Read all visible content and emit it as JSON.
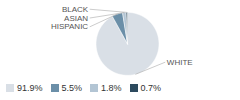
{
  "chart_data": {
    "type": "pie",
    "categories": [
      "WHITE",
      "HISPANIC",
      "ASIAN",
      "BLACK"
    ],
    "values": [
      91.9,
      5.5,
      1.8,
      0.7
    ],
    "value_labels": [
      "91.9%",
      "5.5%",
      "1.8%",
      "0.7%"
    ],
    "colors": [
      "#d9dfe6",
      "#6b8fa8",
      "#b3c5d4",
      "#2c4a5e"
    ],
    "legend": "bottom"
  }
}
